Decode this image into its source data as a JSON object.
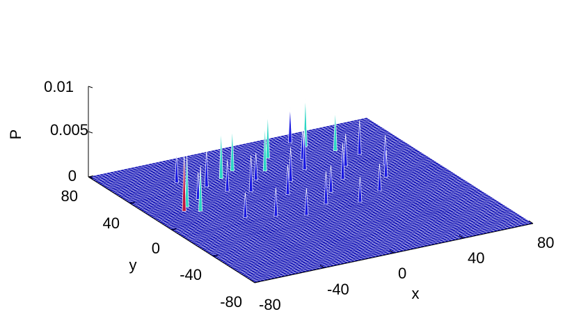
{
  "chart_data": {
    "type": "surface",
    "title": "",
    "xlabel": "x",
    "ylabel": "y",
    "zlabel": "P",
    "xlim": [
      -80,
      80
    ],
    "ylim": [
      -80,
      80
    ],
    "zlim": [
      0,
      0.01
    ],
    "x_ticks": [
      "-80",
      "-40",
      "0",
      "40",
      "80"
    ],
    "y_ticks": [
      "-80",
      "-40",
      "0",
      "40",
      "80"
    ],
    "z_ticks": [
      "0",
      "0.005",
      "0.01"
    ],
    "grid": false,
    "surface_color": "#0d0db4",
    "mesh_color": "#ffffff",
    "peaks": [
      {
        "x": -62,
        "y": 18,
        "z": 0.0065
      },
      {
        "x": -58,
        "y": 22,
        "z": 0.0058
      },
      {
        "x": -55,
        "y": 14,
        "z": 0.005
      },
      {
        "x": -48,
        "y": 28,
        "z": 0.003
      },
      {
        "x": -36,
        "y": 40,
        "z": 0.0042
      },
      {
        "x": -30,
        "y": 30,
        "z": 0.0035
      },
      {
        "x": -24,
        "y": 46,
        "z": 0.0055
      },
      {
        "x": -20,
        "y": 24,
        "z": 0.004
      },
      {
        "x": -14,
        "y": 52,
        "z": 0.0048
      },
      {
        "x": -10,
        "y": 36,
        "z": 0.003
      },
      {
        "x": -6,
        "y": 12,
        "z": 0.0033
      },
      {
        "x": 0,
        "y": 44,
        "z": 0.0052
      },
      {
        "x": 4,
        "y": 26,
        "z": 0.0038
      },
      {
        "x": 10,
        "y": 58,
        "z": 0.005
      },
      {
        "x": 14,
        "y": 4,
        "z": 0.003
      },
      {
        "x": 18,
        "y": 36,
        "z": 0.0044
      },
      {
        "x": 24,
        "y": 48,
        "z": 0.0035
      },
      {
        "x": 28,
        "y": 16,
        "z": 0.004
      },
      {
        "x": 34,
        "y": 62,
        "z": 0.0056
      },
      {
        "x": 38,
        "y": 30,
        "z": 0.0036
      },
      {
        "x": 44,
        "y": 50,
        "z": 0.0046
      },
      {
        "x": 48,
        "y": 8,
        "z": 0.003
      },
      {
        "x": 52,
        "y": 40,
        "z": 0.0038
      },
      {
        "x": 56,
        "y": 22,
        "z": 0.0033
      },
      {
        "x": -40,
        "y": -4,
        "z": 0.0028
      },
      {
        "x": -26,
        "y": -10,
        "z": 0.0032
      },
      {
        "x": -12,
        "y": -16,
        "z": 0.003
      },
      {
        "x": 4,
        "y": -8,
        "z": 0.0036
      },
      {
        "x": 20,
        "y": -14,
        "z": 0.0028
      },
      {
        "x": 36,
        "y": -6,
        "z": 0.003
      },
      {
        "x": -46,
        "y": 52,
        "z": 0.0034
      },
      {
        "x": 30,
        "y": 70,
        "z": 0.004
      }
    ]
  }
}
